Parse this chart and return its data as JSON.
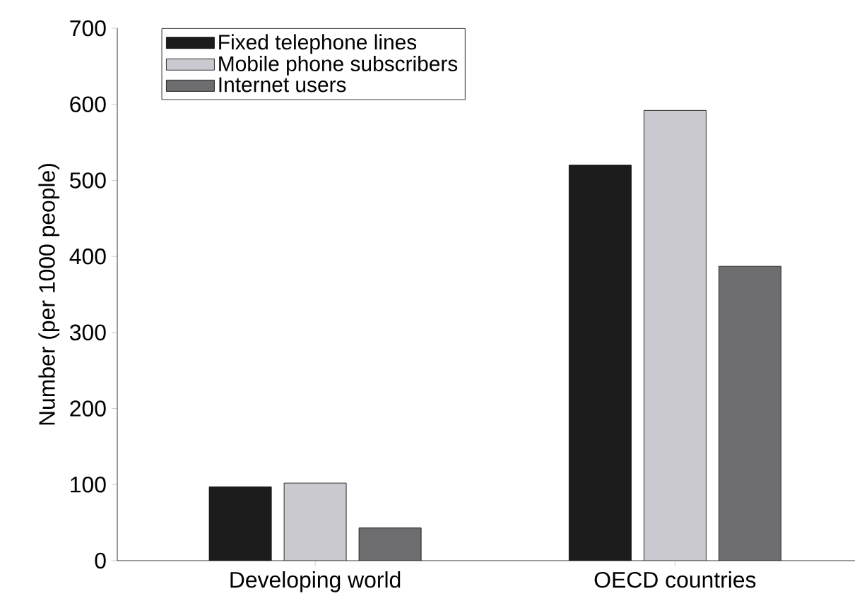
{
  "chart_data": {
    "type": "bar",
    "ylabel": "Number (per 1000 people)",
    "categories": [
      "Developing world",
      "OECD countries"
    ],
    "series": [
      {
        "name": "Fixed telephone lines",
        "color": "#1c1c1c",
        "values": [
          97,
          520
        ]
      },
      {
        "name": "Mobile phone subscribers",
        "color": "#c9c9cf",
        "values": [
          102,
          592
        ]
      },
      {
        "name": "Internet users",
        "color": "#6e6e70",
        "values": [
          43,
          387
        ]
      }
    ],
    "ylim": [
      0,
      700
    ],
    "yticks": [
      0,
      100,
      200,
      300,
      400,
      500,
      600,
      700
    ],
    "legend": "top left",
    "grid": false
  }
}
